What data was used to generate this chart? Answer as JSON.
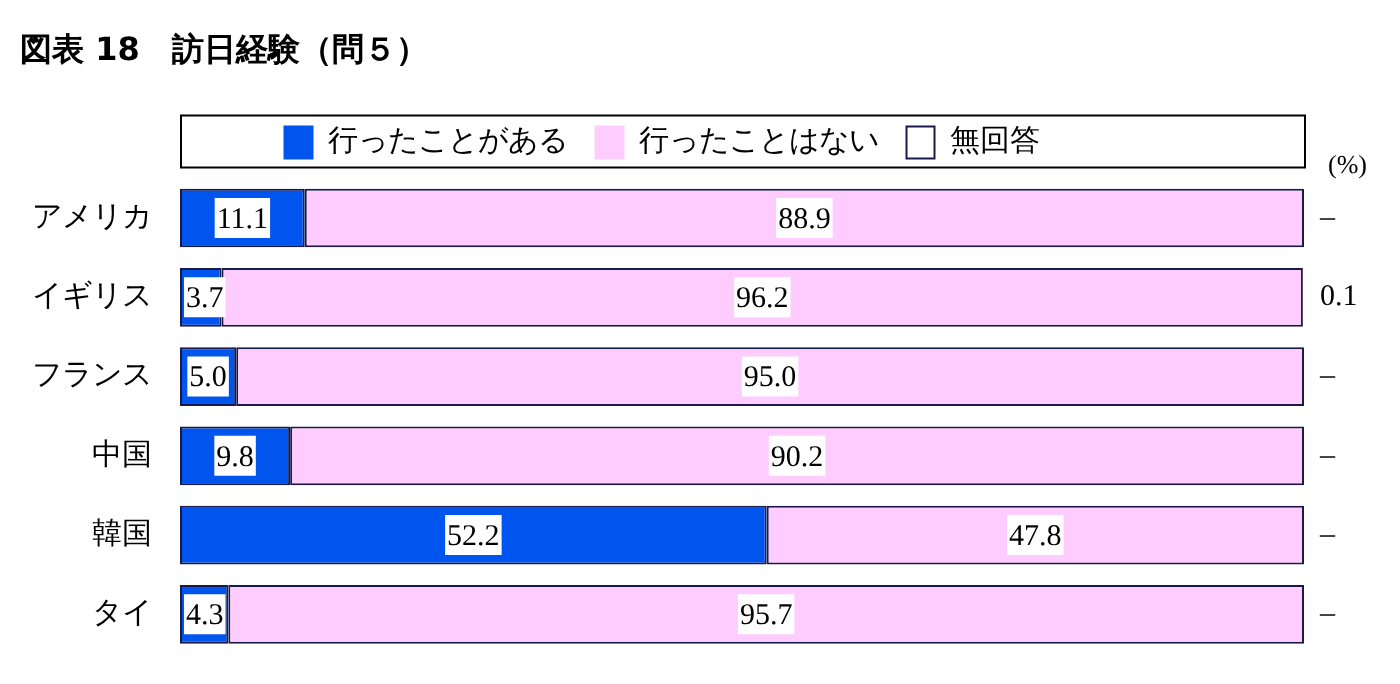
{
  "chart_data": {
    "type": "bar",
    "orientation": "horizontal",
    "stacked": true,
    "title": "図表 18　訪日経験（問５）",
    "categories": [
      "アメリカ",
      "イギリス",
      "フランス",
      "中国",
      "韓国",
      "タイ"
    ],
    "series": [
      {
        "name": "行ったことがある",
        "color": "#0055ee",
        "values": [
          11.1,
          3.7,
          5.0,
          9.8,
          52.2,
          4.3
        ],
        "value_labels": [
          "11.1",
          "3.7",
          "5.0",
          "9.8",
          "52.2",
          "4.3"
        ]
      },
      {
        "name": "行ったことはない",
        "color": "#ffccff",
        "values": [
          88.9,
          96.2,
          95.0,
          90.2,
          47.8,
          95.7
        ],
        "value_labels": [
          "88.9",
          "96.2",
          "95.0",
          "90.2",
          "47.8",
          "95.7"
        ]
      },
      {
        "name": "無回答",
        "color": "#ffffff",
        "values": [
          0,
          0.1,
          0,
          0,
          0,
          0
        ],
        "value_labels": [
          "–",
          "0.1",
          "–",
          "–",
          "–",
          "–"
        ]
      }
    ],
    "xlim": [
      0,
      100
    ],
    "legend": "top",
    "grid": false,
    "annotations": [
      "(%)"
    ]
  }
}
